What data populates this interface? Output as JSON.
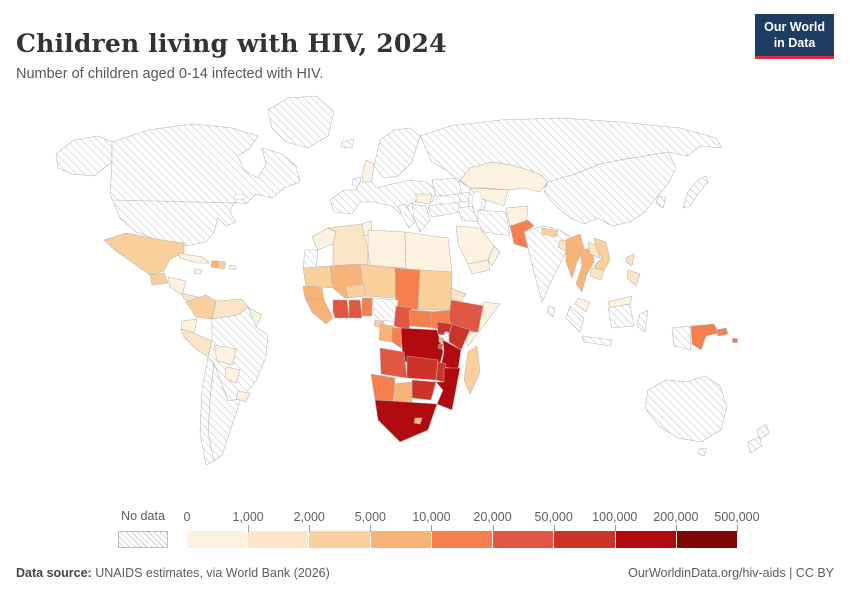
{
  "header": {
    "title": "Children living with HIV, 2024",
    "subtitle": "Number of children aged 0-14 infected with HIV.",
    "logo": {
      "line1": "Our World",
      "line2": "in Data",
      "bg_color": "#1d3d63",
      "accent_color": "#dc2e3e"
    }
  },
  "legend": {
    "no_data_label": "No data",
    "ticks": [
      "0",
      "1,000",
      "2,000",
      "5,000",
      "10,000",
      "20,000",
      "50,000",
      "100,000",
      "200,000",
      "500,000"
    ],
    "colors": [
      "#fdf1e0",
      "#fbe5c6",
      "#f9cf9c",
      "#f8b377",
      "#f4814d",
      "#e25744",
      "#ce3328",
      "#b20b0f",
      "#7c0904"
    ]
  },
  "footer": {
    "source_label": "Data source:",
    "source_text": " UNAIDS estimates, via World Bank (2026)",
    "right_text": "OurWorldinData.org/hiv-aids | CC BY"
  },
  "map": {
    "ocean_color": "#ffffff",
    "hatch_line_color": "#cdcdcd",
    "border_color": "#b3b3b3",
    "regions": {
      "alaska": "nodata",
      "canada-usa": "nodata",
      "greenland": "nodata",
      "puerto-rico": "nodata",
      "brazil": "nodata",
      "argentina": "nodata",
      "chile": "nodata",
      "iceland": "nodata",
      "ireland": "nodata",
      "uk": 0,
      "scandinavia": "nodata",
      "europe-mainland": "nodata",
      "italy": "nodata",
      "balkans": "nodata",
      "romania": 0,
      "ukraine": "nodata",
      "russia": "nodata",
      "caucasus": "nodata",
      "turkey": "nodata",
      "kazakhstan": 0,
      "uzbekistan-region": 0,
      "turkmenistan": "nodata",
      "iraq-syria": "nodata",
      "iran": "nodata",
      "afghanistan": 0,
      "pakistan": 4,
      "saudi-arabia": 0,
      "yemen": 0,
      "oman": 0,
      "india": "nodata",
      "nepal": 2,
      "bangladesh": 1,
      "sri-lanka": "nodata",
      "china": "nodata",
      "korea": "nodata",
      "japan": "nodata",
      "myanmar": 3,
      "thailand": 3,
      "laos": 1,
      "vietnam": 2,
      "cambodia": 1,
      "malaysia-peninsula": 0,
      "borneo-malaysia": 0,
      "indonesia-sumatra": "nodata",
      "indonesia-java": "nodata",
      "indonesia-borneo": "nodata",
      "indonesia-sulawesi": "nodata",
      "indonesia-papua": "nodata",
      "philippines-north": 1,
      "philippines-south": 1,
      "papua-new-guinea": 4,
      "new-britain": 4,
      "solomon-islands": 4,
      "australia": "nodata",
      "tasmania": "nodata",
      "new-zealand-north": "nodata",
      "new-zealand-south": "nodata",
      "mexico": 2,
      "guatemala": 2,
      "honduras-nicaragua": 0,
      "costa-rica-panama": 1,
      "cuba": 0,
      "jamaica": 0,
      "haiti": 3,
      "dominican-republic": 2,
      "colombia": 2,
      "venezuela": 1,
      "guyana-suriname": 0,
      "ecuador": 0,
      "peru": 1,
      "bolivia": 0,
      "paraguay": 0,
      "uruguay": 0,
      "morocco": 0,
      "western-sahara": "nodata",
      "algeria": 1,
      "tunisia": 0,
      "libya": 0,
      "egypt": 0,
      "mauritania": 2,
      "mali": 3,
      "niger": 2,
      "chad": 4,
      "sudan": 2,
      "eritrea": 1,
      "senegal": 3,
      "guinea-region": 3,
      "burkina-faso": 2,
      "cote-divoire": 5,
      "ghana": 5,
      "togo-benin": 4,
      "nigeria": "nodata",
      "cameroon": 5,
      "central-african-republic": 4,
      "south-sudan": 4,
      "ethiopia": 5,
      "somalia": 0,
      "equatorial-guinea": 2,
      "gabon": 3,
      "congo": 4,
      "drc": 7,
      "uganda": 6,
      "kenya": 6,
      "rwanda": 3,
      "burundi": 5,
      "tanzania": 7,
      "angola": 5,
      "zambia": 6,
      "malawi": 6,
      "mozambique": 7,
      "zimbabwe": 6,
      "botswana": 3,
      "namibia": 4,
      "south-africa": 7,
      "lesotho": 3,
      "madagascar": 2
    }
  },
  "chart_data": {
    "type": "choropleth-map",
    "title": "Children living with HIV, 2024",
    "subtitle": "Number of children aged 0-14 infected with HIV.",
    "legend_bins": [
      "0-1,000",
      "1,000-2,000",
      "2,000-5,000",
      "5,000-10,000",
      "10,000-20,000",
      "20,000-50,000",
      "50,000-100,000",
      "100,000-200,000",
      "200,000-500,000"
    ],
    "bin_colors": [
      "#fdf1e0",
      "#fbe5c6",
      "#f9cf9c",
      "#f8b377",
      "#f4814d",
      "#e25744",
      "#ce3328",
      "#b20b0f",
      "#7c0904"
    ],
    "no_data": [
      "United States",
      "Canada",
      "Greenland",
      "Brazil",
      "Argentina",
      "Chile",
      "Iceland",
      "Ireland",
      "Western & Central Europe",
      "Russia",
      "Ukraine",
      "Turkey",
      "Iran",
      "Iraq",
      "Syria",
      "Turkmenistan",
      "India",
      "Sri Lanka",
      "China",
      "Mongolia",
      "Japan",
      "South Korea",
      "Indonesia",
      "Australia",
      "New Zealand",
      "Nigeria",
      "Western Sahara",
      "Puerto Rico"
    ],
    "entities": {
      "United Kingdom": "0-1,000",
      "Romania": "0-1,000",
      "Kazakhstan": "0-1,000",
      "Uzbekistan": "0-1,000",
      "Afghanistan": "0-1,000",
      "Saudi Arabia": "0-1,000",
      "Yemen": "0-1,000",
      "Oman": "0-1,000",
      "Morocco": "0-1,000",
      "Tunisia": "0-1,000",
      "Libya": "0-1,000",
      "Egypt": "0-1,000",
      "Somalia": "0-1,000",
      "Cuba": "0-1,000",
      "Jamaica": "0-1,000",
      "Honduras": "0-1,000",
      "Nicaragua": "0-1,000",
      "Ecuador": "0-1,000",
      "Bolivia": "0-1,000",
      "Paraguay": "0-1,000",
      "Uruguay": "0-1,000",
      "Guyana": "0-1,000",
      "Suriname": "0-1,000",
      "Malaysia": "0-1,000",
      "Algeria": "1,000-2,000",
      "Venezuela": "1,000-2,000",
      "Peru": "1,000-2,000",
      "Eritrea": "1,000-2,000",
      "Laos": "1,000-2,000",
      "Cambodia": "1,000-2,000",
      "Bangladesh": "1,000-2,000",
      "Philippines": "1,000-2,000",
      "Costa Rica": "1,000-2,000",
      "Panama": "1,000-2,000",
      "Mexico": "2,000-5,000",
      "Guatemala": "2,000-5,000",
      "Colombia": "2,000-5,000",
      "Dominican Republic": "2,000-5,000",
      "Mauritania": "2,000-5,000",
      "Niger": "2,000-5,000",
      "Burkina Faso": "2,000-5,000",
      "Sudan": "2,000-5,000",
      "Nepal": "2,000-5,000",
      "Vietnam": "2,000-5,000",
      "Madagascar": "2,000-5,000",
      "Equatorial Guinea": "2,000-5,000",
      "Haiti": "5,000-10,000",
      "Senegal": "5,000-10,000",
      "Guinea": "5,000-10,000",
      "Sierra Leone": "5,000-10,000",
      "Liberia": "5,000-10,000",
      "Mali": "5,000-10,000",
      "Gabon": "5,000-10,000",
      "Botswana": "5,000-10,000",
      "Myanmar": "5,000-10,000",
      "Thailand": "5,000-10,000",
      "Rwanda": "5,000-10,000",
      "Lesotho": "5,000-10,000",
      "Pakistan": "10,000-20,000",
      "Chad": "10,000-20,000",
      "Togo": "10,000-20,000",
      "Benin": "10,000-20,000",
      "Central African Republic": "10,000-20,000",
      "Congo": "10,000-20,000",
      "South Sudan": "10,000-20,000",
      "Namibia": "10,000-20,000",
      "Papua New Guinea": "10,000-20,000",
      "Solomon Islands": "10,000-20,000",
      "Cote d'Ivoire": "20,000-50,000",
      "Ghana": "20,000-50,000",
      "Cameroon": "20,000-50,000",
      "Ethiopia": "20,000-50,000",
      "Angola": "20,000-50,000",
      "Burundi": "20,000-50,000",
      "Uganda": "50,000-100,000",
      "Kenya": "50,000-100,000",
      "Zambia": "50,000-100,000",
      "Zimbabwe": "50,000-100,000",
      "Malawi": "50,000-100,000",
      "Democratic Republic of Congo": "100,000-200,000",
      "Tanzania": "100,000-200,000",
      "Mozambique": "100,000-200,000",
      "South Africa": "100,000-200,000"
    }
  }
}
